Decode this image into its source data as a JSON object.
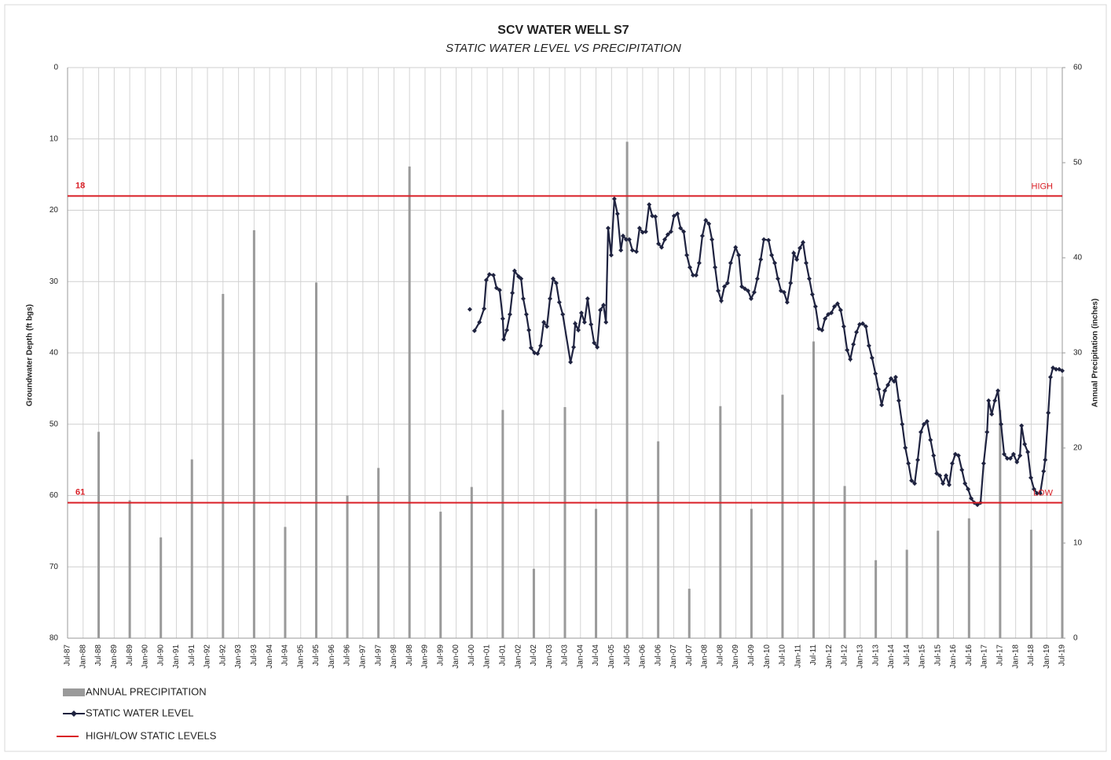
{
  "chart_data": {
    "type": "combo",
    "title": "SCV WATER WELL S7",
    "subtitle": "STATIC WATER LEVEL VS PRECIPITATION",
    "ylabel": "Groundwater Depth (ft bgs)",
    "y2label": "Annual Precipitation (inches)",
    "ylim": [
      0,
      80
    ],
    "y_inverted": true,
    "yticks": [
      0,
      10,
      20,
      30,
      40,
      50,
      60,
      70,
      80
    ],
    "y2lim": [
      0,
      60
    ],
    "y2ticks": [
      0,
      10,
      20,
      30,
      40,
      50,
      60
    ],
    "xlim": [
      1987.5,
      2019.5
    ],
    "grid": true,
    "xticks": [
      {
        "value": 1987.5,
        "label": "Jul-87"
      },
      {
        "value": 1988,
        "label": "Jan-88"
      },
      {
        "value": 1988.5,
        "label": "Jul-88"
      },
      {
        "value": 1989,
        "label": "Jan-89"
      },
      {
        "value": 1989.5,
        "label": "Jul-89"
      },
      {
        "value": 1990,
        "label": "Jan-90"
      },
      {
        "value": 1990.5,
        "label": "Jul-90"
      },
      {
        "value": 1991,
        "label": "Jan-91"
      },
      {
        "value": 1991.5,
        "label": "Jul-91"
      },
      {
        "value": 1992,
        "label": "Jan-92"
      },
      {
        "value": 1992.5,
        "label": "Jul-92"
      },
      {
        "value": 1993,
        "label": "Jan-93"
      },
      {
        "value": 1993.5,
        "label": "Jul-93"
      },
      {
        "value": 1994,
        "label": "Jan-94"
      },
      {
        "value": 1994.5,
        "label": "Jul-94"
      },
      {
        "value": 1995,
        "label": "Jan-95"
      },
      {
        "value": 1995.5,
        "label": "Jul-95"
      },
      {
        "value": 1996,
        "label": "Jan-96"
      },
      {
        "value": 1996.5,
        "label": "Jul-96"
      },
      {
        "value": 1997,
        "label": "Jan-97"
      },
      {
        "value": 1997.5,
        "label": "Jul-97"
      },
      {
        "value": 1998,
        "label": "Jan-98"
      },
      {
        "value": 1998.5,
        "label": "Jul-98"
      },
      {
        "value": 1999,
        "label": "Jan-99"
      },
      {
        "value": 1999.5,
        "label": "Jul-99"
      },
      {
        "value": 2000,
        "label": "Jan-00"
      },
      {
        "value": 2000.5,
        "label": "Jul-00"
      },
      {
        "value": 2001,
        "label": "Jan-01"
      },
      {
        "value": 2001.5,
        "label": "Jul-01"
      },
      {
        "value": 2002,
        "label": "Jan-02"
      },
      {
        "value": 2002.5,
        "label": "Jul-02"
      },
      {
        "value": 2003,
        "label": "Jan-03"
      },
      {
        "value": 2003.5,
        "label": "Jul-03"
      },
      {
        "value": 2004,
        "label": "Jan-04"
      },
      {
        "value": 2004.5,
        "label": "Jul-04"
      },
      {
        "value": 2005,
        "label": "Jan-05"
      },
      {
        "value": 2005.5,
        "label": "Jul-05"
      },
      {
        "value": 2006,
        "label": "Jan-06"
      },
      {
        "value": 2006.5,
        "label": "Jul-06"
      },
      {
        "value": 2007,
        "label": "Jan-07"
      },
      {
        "value": 2007.5,
        "label": "Jul-07"
      },
      {
        "value": 2008,
        "label": "Jan-08"
      },
      {
        "value": 2008.5,
        "label": "Jul-08"
      },
      {
        "value": 2009,
        "label": "Jan-09"
      },
      {
        "value": 2009.5,
        "label": "Jul-09"
      },
      {
        "value": 2010,
        "label": "Jan-10"
      },
      {
        "value": 2010.5,
        "label": "Jul-10"
      },
      {
        "value": 2011,
        "label": "Jan-11"
      },
      {
        "value": 2011.5,
        "label": "Jul-11"
      },
      {
        "value": 2012,
        "label": "Jan-12"
      },
      {
        "value": 2012.5,
        "label": "Jul-12"
      },
      {
        "value": 2013,
        "label": "Jan-13"
      },
      {
        "value": 2013.5,
        "label": "Jul-13"
      },
      {
        "value": 2014,
        "label": "Jan-14"
      },
      {
        "value": 2014.5,
        "label": "Jul-14"
      },
      {
        "value": 2015,
        "label": "Jan-15"
      },
      {
        "value": 2015.5,
        "label": "Jul-15"
      },
      {
        "value": 2016,
        "label": "Jan-16"
      },
      {
        "value": 2016.5,
        "label": "Jul-16"
      },
      {
        "value": 2017,
        "label": "Jan-17"
      },
      {
        "value": 2017.5,
        "label": "Jul-17"
      },
      {
        "value": 2018,
        "label": "Jan-18"
      },
      {
        "value": 2018.5,
        "label": "Jul-18"
      },
      {
        "value": 2019,
        "label": "Jan-19"
      },
      {
        "value": 2019.5,
        "label": "Jul-19"
      }
    ],
    "series": [
      {
        "name": "ANNUAL PRECIPITATION",
        "type": "bar",
        "axis": "y2",
        "color": "#9a9a9a",
        "x": [
          1988.5,
          1989.5,
          1990.5,
          1991.5,
          1992.5,
          1993.5,
          1994.5,
          1995.5,
          1996.5,
          1997.5,
          1998.5,
          1999.5,
          2000.5,
          2001.5,
          2002.5,
          2003.5,
          2004.5,
          2005.5,
          2006.5,
          2007.5,
          2008.5,
          2009.5,
          2010.5,
          2011.5,
          2012.5,
          2013.5,
          2014.5,
          2015.5,
          2016.5,
          2017.5,
          2018.5,
          2019.5
        ],
        "values": [
          21.7,
          14.5,
          10.6,
          18.8,
          36.2,
          42.9,
          11.7,
          37.4,
          15.0,
          17.9,
          49.6,
          13.3,
          15.9,
          24.0,
          7.3,
          24.3,
          13.6,
          52.2,
          20.7,
          5.2,
          24.4,
          13.6,
          25.6,
          31.2,
          16.0,
          8.2,
          9.3,
          11.3,
          12.6,
          24.0,
          11.4,
          27.5
        ]
      },
      {
        "name": "STATIC WATER LEVEL",
        "type": "line",
        "color": "#1f2340",
        "x": [
          2000.44,
          2000.52,
          2000.59,
          2000.75,
          2000.9,
          2000.97,
          2001.07,
          2001.2,
          2001.3,
          2001.4,
          2001.5,
          2001.53,
          2001.63,
          2001.73,
          2001.81,
          2001.88,
          2002.01,
          2002.09,
          2002.16,
          2002.26,
          2002.34,
          2002.41,
          2002.52,
          2002.62,
          2002.72,
          2002.82,
          2002.92,
          2003.02,
          2003.12,
          2003.22,
          2003.32,
          2003.43,
          2003.68,
          2003.78,
          2003.83,
          2003.93,
          2004.03,
          2004.13,
          2004.23,
          2004.34,
          2004.44,
          2004.54,
          2004.64,
          2004.74,
          2004.82,
          2004.89,
          2004.99,
          2005.09,
          2005.19,
          2005.3,
          2005.37,
          2005.47,
          2005.57,
          2005.67,
          2005.8,
          2005.9,
          2006.0,
          2006.1,
          2006.21,
          2006.31,
          2006.41,
          2006.51,
          2006.61,
          2006.71,
          2006.81,
          2006.91,
          2007.01,
          2007.12,
          2007.22,
          2007.32,
          2007.42,
          2007.52,
          2007.62,
          2007.72,
          2007.82,
          2007.92,
          2008.03,
          2008.13,
          2008.23,
          2008.33,
          2008.43,
          2008.53,
          2008.63,
          2008.73,
          2008.83,
          2008.99,
          2009.09,
          2009.19,
          2009.29,
          2009.39,
          2009.49,
          2009.59,
          2009.69,
          2009.8,
          2009.9,
          2010.05,
          2010.15,
          2010.25,
          2010.35,
          2010.45,
          2010.55,
          2010.65,
          2010.76,
          2010.86,
          2010.96,
          2011.06,
          2011.16,
          2011.26,
          2011.36,
          2011.46,
          2011.56,
          2011.67,
          2011.77,
          2011.87,
          2011.97,
          2012.07,
          2012.17,
          2012.27,
          2012.37,
          2012.47,
          2012.58,
          2012.68,
          2012.78,
          2012.88,
          2012.98,
          2013.08,
          2013.18,
          2013.28,
          2013.38,
          2013.49,
          2013.59,
          2013.69,
          2013.79,
          2013.89,
          2013.99,
          2014.09,
          2014.14,
          2014.24,
          2014.35,
          2014.45,
          2014.55,
          2014.65,
          2014.75,
          2014.85,
          2014.95,
          2015.05,
          2015.15,
          2015.26,
          2015.36,
          2015.46,
          2015.56,
          2015.66,
          2015.76,
          2015.86,
          2015.96,
          2016.06,
          2016.16,
          2016.27,
          2016.37,
          2016.47,
          2016.57,
          2016.67,
          2016.77,
          2016.87,
          2016.97,
          2017.08,
          2017.13,
          2017.23,
          2017.33,
          2017.43,
          2017.53,
          2017.63,
          2017.73,
          2017.83,
          2017.93,
          2018.04,
          2018.14,
          2018.19,
          2018.29,
          2018.39,
          2018.49,
          2018.59,
          2018.69,
          2018.79,
          2018.9,
          2018.95,
          2019.05,
          2019.12,
          2019.2,
          2019.3,
          2019.4,
          2019.5
        ],
        "values": [
          33.9,
          null,
          36.9,
          35.7,
          33.8,
          29.8,
          29.0,
          29.1,
          30.9,
          31.2,
          35.2,
          38.1,
          36.8,
          34.6,
          31.6,
          28.5,
          29.3,
          29.6,
          32.4,
          34.6,
          36.8,
          39.3,
          40.0,
          40.1,
          39.0,
          35.7,
          36.3,
          32.4,
          29.6,
          30.2,
          32.9,
          34.6,
          41.3,
          39.2,
          35.9,
          36.8,
          34.4,
          35.7,
          32.4,
          36.0,
          38.6,
          39.2,
          34.0,
          33.3,
          35.7,
          22.5,
          26.3,
          18.4,
          20.5,
          25.6,
          23.6,
          24.1,
          24.1,
          25.6,
          25.8,
          22.5,
          23.1,
          23.0,
          19.2,
          20.8,
          20.9,
          24.7,
          25.2,
          24.1,
          23.4,
          23.0,
          20.8,
          20.5,
          22.5,
          23.0,
          26.3,
          28.0,
          29.1,
          29.1,
          27.4,
          23.6,
          21.4,
          21.9,
          24.1,
          28.0,
          31.3,
          32.7,
          30.7,
          30.2,
          27.4,
          25.2,
          26.3,
          30.7,
          31.0,
          31.3,
          32.4,
          31.5,
          29.6,
          26.9,
          24.1,
          24.2,
          26.3,
          27.4,
          29.6,
          31.3,
          31.5,
          32.9,
          30.2,
          26.0,
          26.9,
          25.3,
          24.5,
          27.4,
          29.6,
          31.8,
          33.5,
          36.6,
          36.8,
          35.2,
          34.6,
          34.4,
          33.5,
          33.1,
          34.0,
          36.3,
          39.6,
          40.9,
          38.8,
          37.1,
          36.0,
          35.9,
          36.3,
          39.0,
          40.7,
          42.9,
          45.1,
          47.3,
          45.3,
          44.5,
          43.6,
          44.0,
          43.4,
          46.7,
          50.0,
          53.3,
          55.5,
          57.9,
          58.3,
          55.0,
          51.1,
          50.0,
          49.6,
          52.2,
          54.4,
          56.9,
          57.2,
          58.3,
          57.2,
          58.5,
          55.5,
          54.2,
          54.4,
          56.4,
          58.3,
          59.1,
          60.4,
          61.0,
          61.3,
          61.0,
          55.5,
          51.1,
          46.7,
          48.6,
          46.7,
          45.3,
          50.0,
          54.2,
          54.8,
          54.8,
          54.2,
          55.3,
          54.4,
          50.2,
          52.8,
          53.9,
          57.5,
          59.1,
          59.7,
          59.7,
          56.6,
          55.0,
          48.4,
          43.4,
          42.1,
          42.3,
          42.3,
          42.5
        ]
      }
    ],
    "reference_lines": [
      {
        "value": 18,
        "name": "HIGH",
        "color": "#d91f26"
      },
      {
        "value": 61,
        "name": "LOW",
        "color": "#d91f26"
      }
    ],
    "reference_legend": "HIGH/LOW STATIC LEVELS"
  }
}
